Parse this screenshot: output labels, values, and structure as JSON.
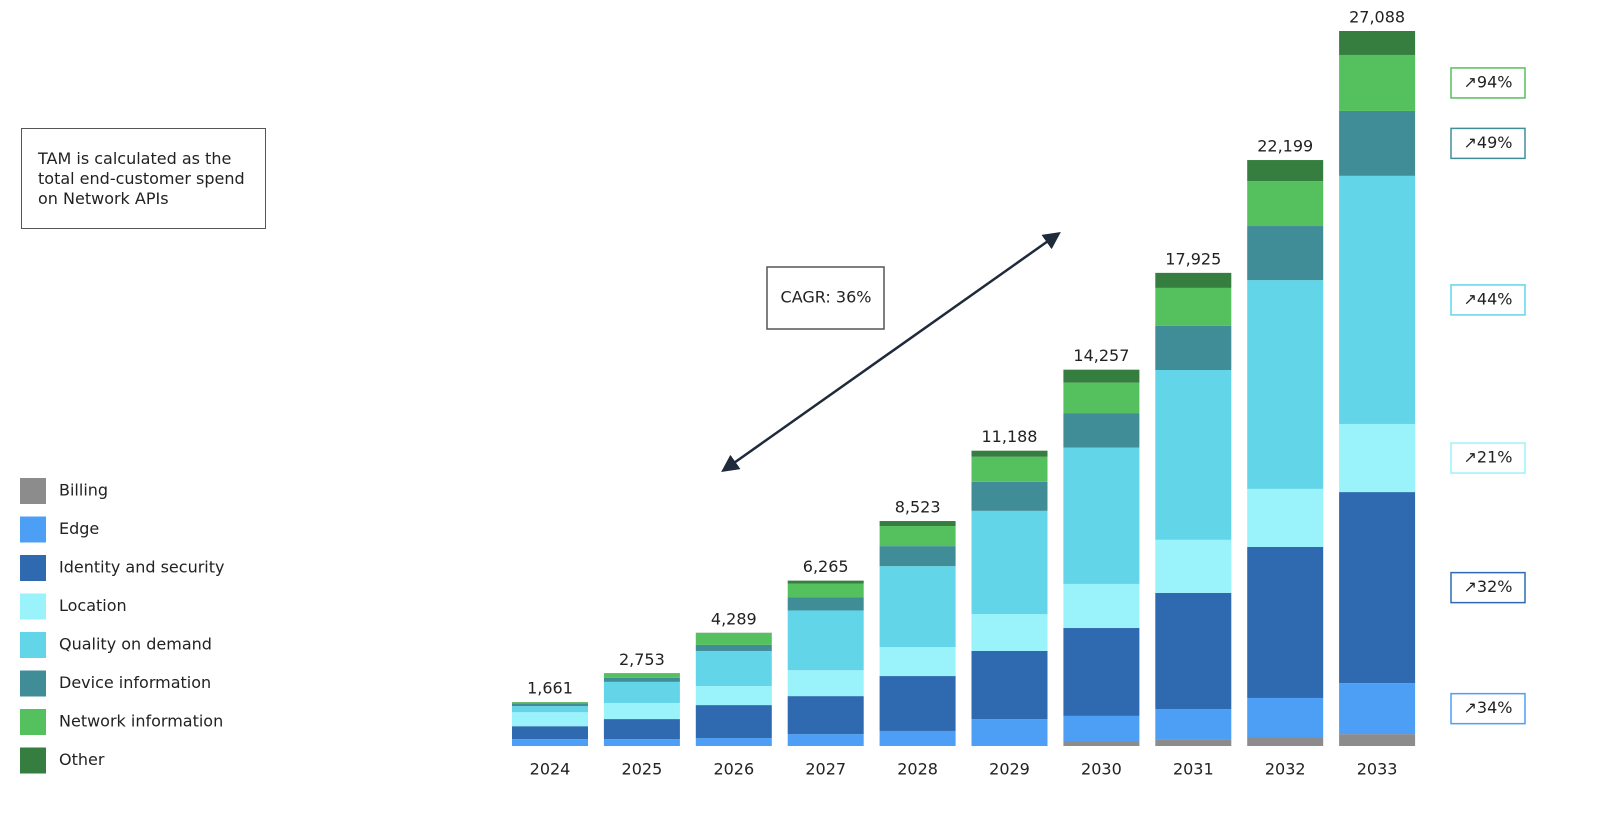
{
  "chart_data": {
    "type": "stacked_bar",
    "note": "TAM is calculated as the total end-customer spend on Network APIs",
    "annotation": "CAGR: 36%",
    "categories": [
      "2024",
      "2025",
      "2026",
      "2027",
      "2028",
      "2029",
      "2030",
      "2031",
      "2032",
      "2033"
    ],
    "totals": [
      {
        "value": 1661,
        "label": "1,661"
      },
      {
        "value": 2753,
        "label": "2,753"
      },
      {
        "value": 4289,
        "label": "4,289"
      },
      {
        "value": 6265,
        "label": "6,265"
      },
      {
        "value": 8523,
        "label": "8,523"
      },
      {
        "value": 11188,
        "label": "11,188"
      },
      {
        "value": 14257,
        "label": "14,257"
      },
      {
        "value": 17925,
        "label": "17,925"
      },
      {
        "value": 22199,
        "label": "22,199"
      },
      {
        "value": 27088,
        "label": "27,088"
      }
    ],
    "series": [
      {
        "name": "Billing",
        "color": "#8c8c8c",
        "values": [
          0,
          0,
          0,
          0,
          0,
          0,
          190,
          230,
          340,
          450
        ]
      },
      {
        "name": "Edge",
        "color": "#4d9ff5",
        "values": [
          260,
          260,
          300,
          450,
          570,
          1020,
          950,
          1170,
          1480,
          1930
        ],
        "growth": {
          "value": 34,
          "label": "↗34%"
        }
      },
      {
        "name": "Identity and security",
        "color": "#2f6ab0",
        "values": [
          490,
          760,
          1250,
          1440,
          2080,
          2580,
          3330,
          4400,
          5720,
          7240
        ],
        "growth": {
          "value": 32,
          "label": "↗32%"
        }
      },
      {
        "name": "Location",
        "color": "#9af2fb",
        "values": [
          530,
          610,
          720,
          980,
          1100,
          1400,
          1670,
          2010,
          2200,
          2580
        ],
        "growth": {
          "value": 21,
          "label": "↗21%"
        }
      },
      {
        "name": "Quality on demand",
        "color": "#62d6e8",
        "values": [
          230,
          800,
          1330,
          2265,
          3063,
          3908,
          5167,
          6435,
          7909,
          9400
        ],
        "growth": {
          "value": 44,
          "label": "↗44%"
        }
      },
      {
        "name": "Device information",
        "color": "#408d98",
        "values": [
          110,
          150,
          230,
          490,
          760,
          1100,
          1290,
          1670,
          2050,
          2460
        ],
        "growth": {
          "value": 49,
          "label": "↗49%"
        }
      },
      {
        "name": "Network information",
        "color": "#55c15e",
        "values": [
          30,
          150,
          450,
          530,
          760,
          950,
          1170,
          1440,
          1700,
          2120
        ],
        "growth": {
          "value": 94,
          "label": "↗94%"
        }
      },
      {
        "name": "Other",
        "color": "#367d40",
        "values": [
          11,
          23,
          9,
          110,
          190,
          230,
          490,
          570,
          800,
          908
        ]
      }
    ]
  }
}
